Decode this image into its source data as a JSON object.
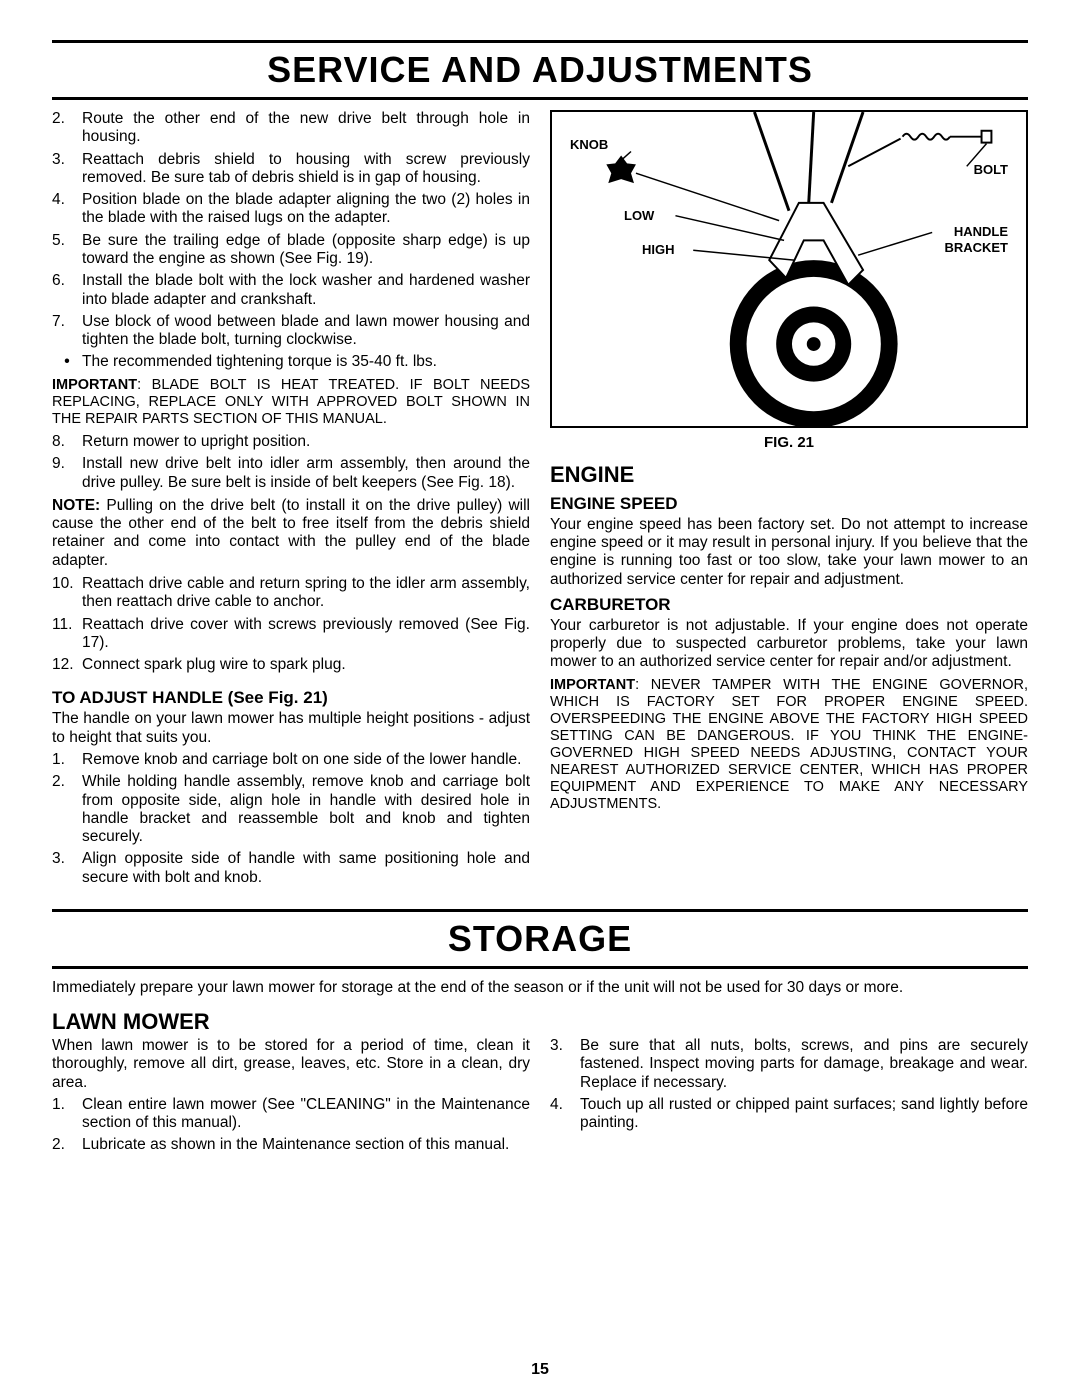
{
  "section1_title": "SERVICE AND ADJUSTMENTS",
  "section2_title": "STORAGE",
  "page_number": "15",
  "left_col": {
    "items_a": [
      {
        "n": "2.",
        "t": "Route the other end of the new drive belt through hole in housing."
      },
      {
        "n": "3.",
        "t": "Reattach debris shield to housing with screw previously removed.  Be sure tab of debris shield is in gap of housing."
      },
      {
        "n": "4.",
        "t": "Position blade on the blade adapter aligning the two (2) holes in the blade with the raised lugs on the adapter."
      },
      {
        "n": "5.",
        "t": "Be sure the trailing edge of blade (opposite sharp edge) is up toward the engine as shown (See Fig. 19)."
      },
      {
        "n": "6.",
        "t": "Install the blade bolt with the lock washer and hardened washer into blade adapter and crankshaft."
      },
      {
        "n": "7.",
        "t": "Use block of wood between blade and lawn mower housing and tighten the blade bolt, turning clockwise."
      }
    ],
    "bullet_a": "The recommended tightening torque is 35-40 ft. lbs.",
    "important_a_label": "IMPORTANT",
    "important_a": ": BLADE BOLT IS HEAT TREATED. IF BOLT NEEDS REPLACING, REPLACE ONLY WITH APPROVED BOLT SHOWN IN THE REPAIR PARTS SECTION OF THIS MANUAL.",
    "items_b": [
      {
        "n": "8.",
        "t": "Return mower to upright position."
      },
      {
        "n": "9.",
        "t": "Install new drive belt into idler arm assembly, then around the drive pulley.  Be sure belt is inside of belt keepers (See Fig. 18)."
      }
    ],
    "note_label": "NOTE:",
    "note_a": " Pulling on the drive belt (to install it on the drive pulley) will cause the other end of the belt to free itself from the debris shield retainer and come into contact with the pulley end of the blade adapter.",
    "items_c": [
      {
        "n": "10.",
        "t": "Reattach drive cable and return spring to the idler arm assembly, then reattach drive cable to anchor."
      },
      {
        "n": "11.",
        "t": "Reattach drive cover with screws previously removed (See Fig. 17)."
      },
      {
        "n": "12.",
        "t": "Connect spark plug wire to spark plug."
      }
    ],
    "adjust_handle_h": "TO ADJUST HANDLE (See Fig. 21)",
    "adjust_handle_p": "The handle on your lawn mower has multiple height positions - adjust to height that suits you.",
    "items_d": [
      {
        "n": "1.",
        "t": "Remove knob and carriage bolt on one side of the lower handle."
      },
      {
        "n": "2.",
        "t": "While holding handle assembly, remove knob and carriage bolt from opposite side, align hole in handle with desired hole in handle bracket and reassemble bolt and knob and tighten securely."
      },
      {
        "n": "3.",
        "t": "Align opposite side of handle with same positioning hole and secure with bolt and knob."
      }
    ]
  },
  "right_col": {
    "fig_labels": {
      "knob": "KNOB",
      "bolt": "BOLT",
      "low": "LOW",
      "high": "HIGH",
      "handle": "HANDLE",
      "bracket": "BRACKET"
    },
    "fig_caption": "FIG. 21",
    "engine_h": "ENGINE",
    "engine_speed_h": "ENGINE SPEED",
    "engine_speed_p": "Your engine speed has been factory set.  Do not attempt to increase engine speed or it may  result in personal injury.  If you believe that the engine is running too fast or too slow, take your lawn mower to an authorized service center for repair and adjustment.",
    "carb_h": "CARBURETOR",
    "carb_p": "Your carburetor is not adjustable.  If your engine does not operate properly due to suspected carburetor problems, take your lawn mower to an authorized service center for repair and/or adjustment.",
    "important_b_label": "IMPORTANT",
    "important_b": ": NEVER TAMPER WITH THE ENGINE GOVERNOR, WHICH IS FACTORY SET FOR PROPER ENGINE SPEED. OVERSPEEDING THE ENGINE ABOVE THE FACTORY HIGH SPEED SETTING CAN BE DANGEROUS.  IF YOU THINK THE ENGINE-GOVERNED HIGH SPEED NEEDS ADJUSTING, CONTACT YOUR NEAREST AUTHORIZED SERVICE CENTER, WHICH HAS PROPER EQUIPMENT AND EXPERIENCE TO MAKE ANY NECESSARY ADJUSTMENTS."
  },
  "storage": {
    "intro": "Immediately prepare your lawn mower for storage at the end of the season or if the unit will not be used for 30 days or more.",
    "lawn_h": "LAWN MOWER",
    "lawn_p": "When lawn mower is to be stored for a period of time, clean it thoroughly, remove all dirt, grease, leaves, etc.  Store in a clean, dry area.",
    "left_items": [
      {
        "n": "1.",
        "t": "Clean entire lawn mower (See \"CLEANING\" in the Maintenance section of this manual)."
      },
      {
        "n": "2.",
        "t": "Lubricate as shown in the Maintenance section of this manual."
      }
    ],
    "right_items": [
      {
        "n": "3.",
        "t": "Be sure that all nuts, bolts, screws, and pins are securely fastened. Inspect   moving parts for damage, breakage and wear.  Replace if necessary."
      },
      {
        "n": "4.",
        "t": "Touch up all rusted or chipped paint surfaces; sand lightly before painting."
      }
    ]
  }
}
